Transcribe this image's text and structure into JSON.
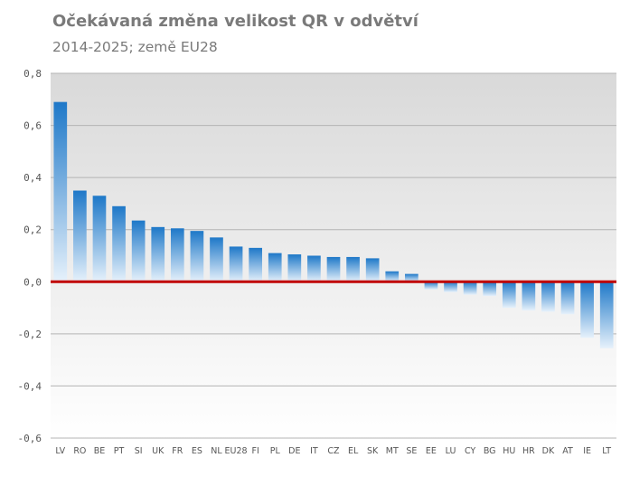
{
  "chart_data": {
    "type": "bar",
    "title": "Očekávaná změna velikost QR v odvětví",
    "subtitle": "2014-2025; země EU28",
    "xlabel": "",
    "ylabel": "",
    "ylim": [
      -0.6,
      0.8
    ],
    "yticks": [
      0.8,
      0.6,
      0.4,
      0.2,
      0.0,
      -0.2,
      -0.4,
      -0.6
    ],
    "ytick_labels": [
      "0,8",
      "0,6",
      "0,4",
      "0,2",
      "0,0",
      "-0,2",
      "-0,4",
      "-0,6"
    ],
    "grid": true,
    "categories": [
      "LV",
      "RO",
      "BE",
      "PT",
      "SI",
      "UK",
      "FR",
      "ES",
      "NL",
      "EU28",
      "FI",
      "PL",
      "DE",
      "IT",
      "CZ",
      "EL",
      "SK",
      "MT",
      "SE",
      "EE",
      "LU",
      "CY",
      "BG",
      "HU",
      "HR",
      "DK",
      "AT",
      "IE",
      "LT"
    ],
    "values": [
      0.69,
      0.35,
      0.33,
      0.29,
      0.235,
      0.21,
      0.205,
      0.195,
      0.17,
      0.135,
      0.13,
      0.11,
      0.105,
      0.1,
      0.095,
      0.095,
      0.09,
      0.04,
      0.03,
      -0.03,
      -0.04,
      -0.05,
      -0.055,
      -0.1,
      -0.11,
      -0.115,
      -0.125,
      -0.215,
      -0.255
    ],
    "colors": {
      "bar_top": "#1e78c8",
      "bar_bottom": "#e6f1fb",
      "zero_line": "#c00000",
      "grid": "#b4b4b4",
      "plot_bg_top": "#d9d9d9",
      "plot_bg_bottom": "#ffffff"
    }
  }
}
